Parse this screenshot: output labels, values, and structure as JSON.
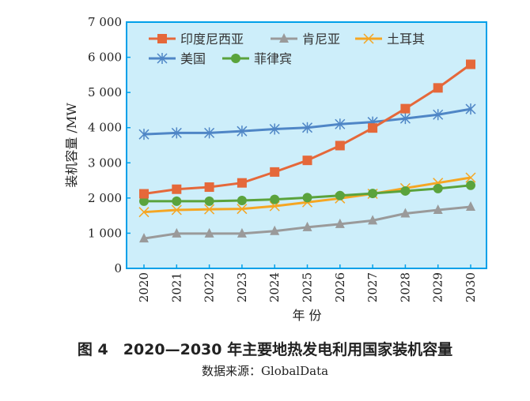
{
  "chart_data": {
    "type": "line",
    "title": "图 4　2020—2030 年主要地热发电利用国家装机容量",
    "source": "数据来源：GlobalData",
    "xlabel": "年 份",
    "ylabel": "装机容量 /MW",
    "ylim": [
      0,
      7000
    ],
    "yticks": [
      0,
      1000,
      2000,
      3000,
      4000,
      5000,
      6000,
      7000
    ],
    "ytick_labels": [
      "0",
      "1 000",
      "2 000",
      "3 000",
      "4 000",
      "5 000",
      "6 000",
      "7 000"
    ],
    "categories": [
      "2020",
      "2021",
      "2022",
      "2023",
      "2024",
      "2025",
      "2026",
      "2027",
      "2028",
      "2029",
      "2030"
    ],
    "legend_position": "top-left",
    "background": "#cdeefa",
    "frame_color": "#00a0e9",
    "series": [
      {
        "name": "印度尼西亚",
        "color": "#e5683a",
        "marker": "square",
        "values": [
          2120,
          2250,
          2310,
          2430,
          2740,
          3070,
          3490,
          3990,
          4540,
          5130,
          5800
        ]
      },
      {
        "name": "肯尼亚",
        "color": "#9a9a9a",
        "marker": "triangle",
        "values": [
          850,
          990,
          990,
          990,
          1060,
          1170,
          1260,
          1360,
          1560,
          1660,
          1750
        ]
      },
      {
        "name": "土耳其",
        "color": "#f5a623",
        "marker": "x",
        "values": [
          1600,
          1660,
          1680,
          1690,
          1770,
          1880,
          1990,
          2120,
          2280,
          2430,
          2580
        ]
      },
      {
        "name": "美国",
        "color": "#4f86c6",
        "marker": "asterisk",
        "values": [
          3810,
          3850,
          3850,
          3900,
          3960,
          4000,
          4100,
          4160,
          4260,
          4370,
          4530
        ]
      },
      {
        "name": "菲律宾",
        "color": "#5aa33c",
        "marker": "circle",
        "values": [
          1910,
          1910,
          1910,
          1930,
          1960,
          2010,
          2070,
          2130,
          2200,
          2270,
          2360
        ]
      }
    ]
  }
}
